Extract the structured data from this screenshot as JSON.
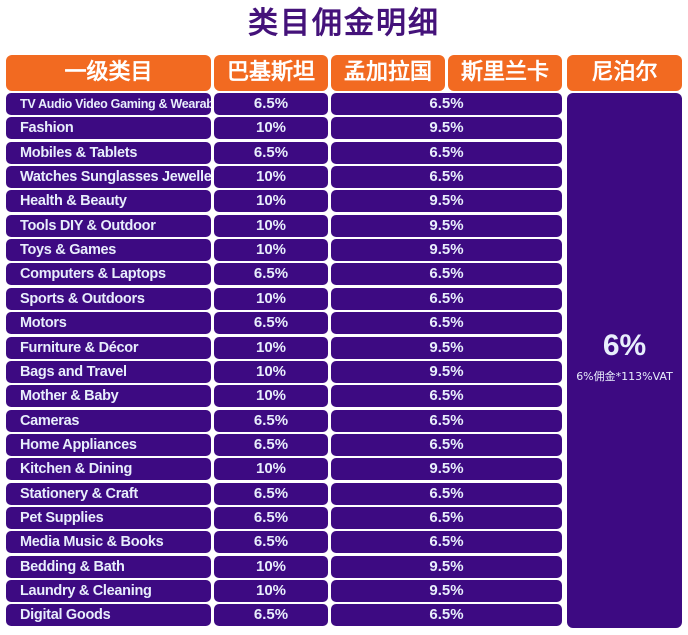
{
  "title": "类目佣金明细",
  "headers": {
    "category": "一级类目",
    "pakistan": "巴基斯坦",
    "bangladesh": "孟加拉国",
    "srilanka": "斯里兰卡",
    "nepal": "尼泊尔"
  },
  "nepal": {
    "rate": "6%",
    "note": "6%佣金*113%VAT"
  },
  "rows": [
    {
      "category": "TV Audio Video Gaming & Wearables",
      "pk": "6.5%",
      "bd": "6.5%"
    },
    {
      "category": "Fashion",
      "pk": "10%",
      "bd": "9.5%"
    },
    {
      "category": "Mobiles & Tablets",
      "pk": "6.5%",
      "bd": "6.5%"
    },
    {
      "category": "Watches Sunglasses Jewellery",
      "pk": "10%",
      "bd": "6.5%"
    },
    {
      "category": "Health & Beauty",
      "pk": "10%",
      "bd": "9.5%"
    },
    {
      "category": "Tools DIY & Outdoor",
      "pk": "10%",
      "bd": "9.5%"
    },
    {
      "category": "Toys & Games",
      "pk": "10%",
      "bd": "9.5%"
    },
    {
      "category": "Computers & Laptops",
      "pk": "6.5%",
      "bd": "6.5%"
    },
    {
      "category": "Sports & Outdoors",
      "pk": "10%",
      "bd": "6.5%"
    },
    {
      "category": "Motors",
      "pk": "6.5%",
      "bd": "6.5%"
    },
    {
      "category": "Furniture & Décor",
      "pk": "10%",
      "bd": "9.5%"
    },
    {
      "category": "Bags and Travel",
      "pk": "10%",
      "bd": "9.5%"
    },
    {
      "category": "Mother & Baby",
      "pk": "10%",
      "bd": "6.5%"
    },
    {
      "category": "Cameras",
      "pk": "6.5%",
      "bd": "6.5%"
    },
    {
      "category": "Home Appliances",
      "pk": "6.5%",
      "bd": "6.5%"
    },
    {
      "category": "Kitchen & Dining",
      "pk": "10%",
      "bd": "9.5%"
    },
    {
      "category": "Stationery & Craft",
      "pk": "6.5%",
      "bd": "6.5%"
    },
    {
      "category": "Pet Supplies",
      "pk": "6.5%",
      "bd": "6.5%"
    },
    {
      "category": "Media Music & Books",
      "pk": "6.5%",
      "bd": "6.5%"
    },
    {
      "category": "Bedding & Bath",
      "pk": "10%",
      "bd": "9.5%"
    },
    {
      "category": "Laundry & Cleaning",
      "pk": "10%",
      "bd": "9.5%"
    },
    {
      "category": "Digital Goods",
      "pk": "6.5%",
      "bd": "6.5%"
    }
  ]
}
